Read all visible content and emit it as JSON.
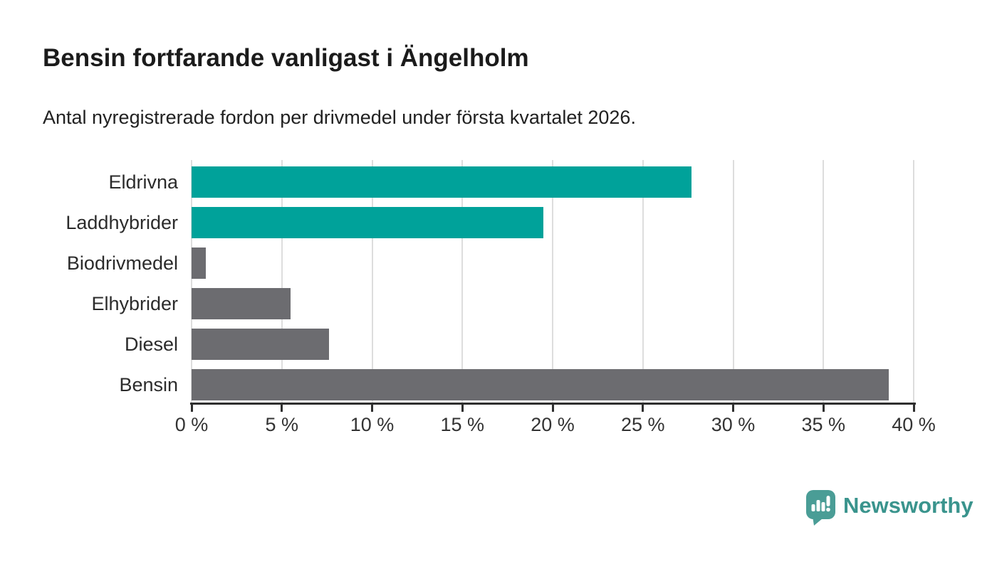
{
  "header": {
    "title": "Bensin fortfarande vanligast i Ängelholm",
    "subtitle": "Antal nyregistrerade fordon per drivmedel under första kvartalet 2026."
  },
  "chart_data": {
    "type": "bar",
    "orientation": "horizontal",
    "title": "Bensin fortfarande vanligast i Ängelholm",
    "xlabel": "",
    "ylabel": "",
    "unit": "%",
    "categories": [
      "Eldrivna",
      "Laddhybrider",
      "Biodrivmedel",
      "Elhybrider",
      "Diesel",
      "Bensin"
    ],
    "values": [
      27.7,
      19.5,
      0.8,
      5.5,
      7.6,
      38.6
    ],
    "bar_colors": [
      "#00a29a",
      "#00a29a",
      "#6c6c70",
      "#6c6c70",
      "#6c6c70",
      "#6c6c70"
    ],
    "xlim": [
      0,
      40
    ],
    "x_ticks": [
      0,
      5,
      10,
      15,
      20,
      25,
      30,
      35,
      40
    ],
    "x_tick_labels": [
      "0 %",
      "5 %",
      "10 %",
      "15 %",
      "20 %",
      "25 %",
      "30 %",
      "35 %",
      "40 %"
    ],
    "grid": "vertical-only",
    "legend": "none"
  },
  "colors": {
    "teal_bar": "#00a29a",
    "gray_bar": "#6c6c70",
    "gridline": "#dddddd",
    "axis": "#2f2f2f",
    "title_text": "#1b1b1b",
    "logo_teal": "#3a948d",
    "logo_icon_teal": "#4a9d96"
  },
  "footer": {
    "brand": "Newsworthy"
  }
}
